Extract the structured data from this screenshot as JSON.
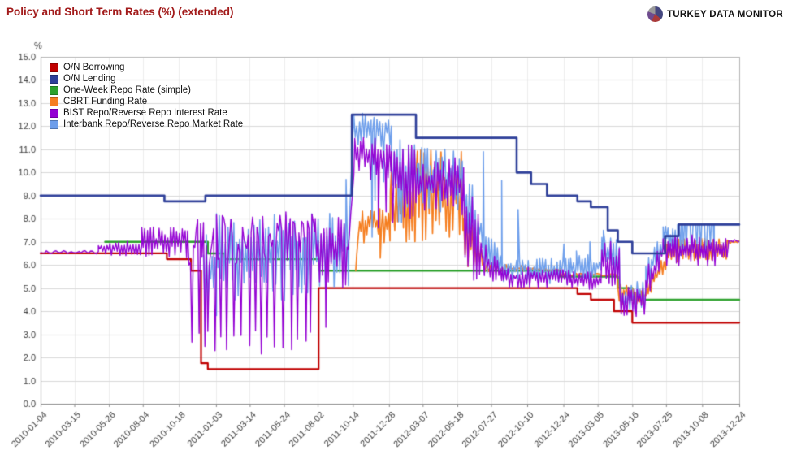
{
  "page": {
    "title": "Policy and Short Term Rates (%) (extended)",
    "title_color": "#A21B1B"
  },
  "logo": {
    "text": "TURKEY DATA MONITOR",
    "pie_colors": [
      "#44477F",
      "#A93A3A",
      "#6E4B8E",
      "#9A9A9A"
    ]
  },
  "chart_data": {
    "type": "line",
    "title": "Policy and Short Term Rates (%) (extended)",
    "unit_label": "%",
    "x_start_date": "2010-01-04",
    "x_end_date": "2013-12-24",
    "x_total_days": 1450,
    "ylim": [
      0,
      15
    ],
    "grid": true,
    "legend_position": "top-left-inside",
    "y_ticks": [
      "0.0",
      "1.0",
      "2.0",
      "3.0",
      "4.0",
      "5.0",
      "6.0",
      "7.0",
      "8.0",
      "9.0",
      "10.0",
      "11.0",
      "12.0",
      "13.0",
      "14.0",
      "15.0"
    ],
    "x_ticks": [
      {
        "d": 0,
        "label": "2010-01-04"
      },
      {
        "d": 70,
        "label": "2010-03-15"
      },
      {
        "d": 142,
        "label": "2010-05-26"
      },
      {
        "d": 212,
        "label": "2010-08-04"
      },
      {
        "d": 287,
        "label": "2010-10-18"
      },
      {
        "d": 364,
        "label": "2011-01-03"
      },
      {
        "d": 434,
        "label": "2011-03-14"
      },
      {
        "d": 505,
        "label": "2011-05-24"
      },
      {
        "d": 575,
        "label": "2011-08-02"
      },
      {
        "d": 648,
        "label": "2011-10-14"
      },
      {
        "d": 723,
        "label": "2011-12-28"
      },
      {
        "d": 793,
        "label": "2012-03-07"
      },
      {
        "d": 865,
        "label": "2012-05-18"
      },
      {
        "d": 935,
        "label": "2012-07-27"
      },
      {
        "d": 1010,
        "label": "2012-10-10"
      },
      {
        "d": 1085,
        "label": "2012-12-24"
      },
      {
        "d": 1156,
        "label": "2013-03-05"
      },
      {
        "d": 1228,
        "label": "2013-05-16"
      },
      {
        "d": 1298,
        "label": "2013-07-25"
      },
      {
        "d": 1373,
        "label": "2013-10-08"
      },
      {
        "d": 1450,
        "label": "2013-12-24"
      }
    ],
    "draw_order": [
      2,
      0,
      3,
      5,
      4,
      1
    ],
    "series": [
      {
        "name": "O/N Borrowing",
        "color": "#C00000",
        "width": 2.2,
        "kind": "step",
        "points": [
          [
            0,
            6.5
          ],
          [
            262,
            6.25
          ],
          [
            312,
            5.75
          ],
          [
            333,
            1.75
          ],
          [
            347,
            1.5
          ],
          [
            577,
            5.0
          ],
          [
            1114,
            4.75
          ],
          [
            1142,
            4.5
          ],
          [
            1190,
            4.0
          ],
          [
            1228,
            3.5
          ],
          [
            1450,
            3.5
          ]
        ]
      },
      {
        "name": "O/N Lending",
        "color": "#2E3F99",
        "width": 2.6,
        "kind": "step",
        "points": [
          [
            0,
            9.0
          ],
          [
            257,
            8.75
          ],
          [
            342,
            9.0
          ],
          [
            646,
            12.5
          ],
          [
            779,
            11.5
          ],
          [
            988,
            10.0
          ],
          [
            1018,
            9.5
          ],
          [
            1051,
            9.0
          ],
          [
            1114,
            8.75
          ],
          [
            1142,
            8.5
          ],
          [
            1177,
            7.5
          ],
          [
            1198,
            7.0
          ],
          [
            1228,
            6.5
          ],
          [
            1296,
            7.25
          ],
          [
            1324,
            7.75
          ],
          [
            1450,
            7.75
          ]
        ]
      },
      {
        "name": "One-Week Repo Rate (simple)",
        "color": "#2CA02C",
        "width": 2.4,
        "kind": "step",
        "points": [
          [
            134,
            7.0
          ],
          [
            347,
            6.5
          ],
          [
            382,
            6.25
          ],
          [
            578,
            5.75
          ],
          [
            1079,
            5.5
          ],
          [
            1198,
            5.0
          ],
          [
            1228,
            4.5
          ],
          [
            1450,
            4.5
          ]
        ]
      },
      {
        "name": "CBRT Funding Rate",
        "color": "#F57E20",
        "width": 1.7,
        "kind": "noisy",
        "segments": [
          {
            "d": [
              654,
              662
            ],
            "mode": "ramp",
            "v0": 5.75,
            "v1": 7.9,
            "j": 0.15,
            "dt": 2
          },
          {
            "d": [
              662,
              726
            ],
            "mode": "noise",
            "lo": 6.9,
            "hi": 8.5,
            "dt": 3
          },
          {
            "d": [
              726,
              782
            ],
            "mode": "noise",
            "lo": 6.9,
            "hi": 9.4,
            "hi2": 10.6,
            "dt": 3
          },
          {
            "d": [
              782,
              878
            ],
            "mode": "noise",
            "lo": 7.0,
            "hi": 11.0,
            "dt": 3.5
          },
          {
            "d": [
              878,
              918
            ],
            "mode": "noise",
            "lo": 5.9,
            "hi": 8.6,
            "hi2": 6.8,
            "dt": 3
          },
          {
            "d": [
              918,
              1080
            ],
            "mode": "noise",
            "lo": 5.7,
            "hi": 6.1,
            "hi2": 5.85,
            "dt": 4
          },
          {
            "d": [
              1080,
              1198
            ],
            "mode": "flat",
            "v": 5.58,
            "j": 0.06,
            "dt": 4
          },
          {
            "d": [
              1198,
              1258
            ],
            "mode": "noise",
            "lo": 4.3,
            "hi": 5.3,
            "hi2": 4.9,
            "dt": 3
          },
          {
            "d": [
              1258,
              1300
            ],
            "mode": "noise",
            "lo": 4.4,
            "lo2": 5.9,
            "hi": 5.3,
            "hi2": 6.6,
            "dt": 3
          },
          {
            "d": [
              1300,
              1425
            ],
            "mode": "noise",
            "lo": 6.1,
            "hi": 7.15,
            "dt": 3
          },
          {
            "d": [
              1425,
              1450
            ],
            "mode": "flat",
            "v": 7.0,
            "j": 0.07,
            "dt": 3
          }
        ],
        "spikes": [
          {
            "d": 705,
            "v": 6.3
          },
          {
            "d": 728,
            "v": 10.0
          }
        ]
      },
      {
        "name": "BIST Repo/Reverse Repo Interest Rate",
        "color": "#9400D3",
        "width": 1.4,
        "kind": "noisy",
        "segments": [
          {
            "d": [
              0,
              120
            ],
            "mode": "flat",
            "v": 6.55,
            "j": 0.07,
            "dt": 4
          },
          {
            "d": [
              120,
              210
            ],
            "mode": "noise",
            "lo": 6.4,
            "hi": 7.05,
            "dt": 3
          },
          {
            "d": [
              210,
              305
            ],
            "mode": "noise",
            "lo": 6.3,
            "hi": 7.65,
            "dt": 3
          },
          {
            "d": [
              305,
              365
            ],
            "mode": "sawdown",
            "hi": 8.0,
            "band": 2.2,
            "lo": 2.2,
            "dipband": 1.2,
            "period": 9,
            "dt": 3
          },
          {
            "d": [
              365,
              570
            ],
            "mode": "sawdown",
            "hi": 8.3,
            "band": 2.3,
            "lo": 1.9,
            "dipband": 1.3,
            "period": 12,
            "dt": 3
          },
          {
            "d": [
              570,
              638
            ],
            "mode": "noise",
            "lo": 4.6,
            "hi": 8.2,
            "dt": 3
          },
          {
            "d": [
              638,
              652
            ],
            "mode": "ramp",
            "v0": 6.5,
            "v1": 10.8,
            "j": 0.4,
            "dt": 3
          },
          {
            "d": [
              652,
              728
            ],
            "mode": "noise",
            "lo": 9.7,
            "hi": 11.6,
            "dt": 3
          },
          {
            "d": [
              728,
              782
            ],
            "mode": "noise",
            "lo": 7.7,
            "hi": 11.2,
            "dt": 3
          },
          {
            "d": [
              782,
              878
            ],
            "mode": "noise",
            "lo": 8.1,
            "hi": 10.65,
            "dt": 3
          },
          {
            "d": [
              878,
              918
            ],
            "mode": "noise",
            "lo": 5.3,
            "hi": 10.4,
            "hi2": 7.5,
            "dt": 3
          },
          {
            "d": [
              918,
              958
            ],
            "mode": "noise",
            "lo": 5.0,
            "hi": 7.2,
            "hi2": 6.2,
            "dt": 3
          },
          {
            "d": [
              958,
              1100
            ],
            "mode": "noise",
            "lo": 4.95,
            "hi": 5.9,
            "dt": 3
          },
          {
            "d": [
              1100,
              1165
            ],
            "mode": "noise",
            "lo": 4.9,
            "hi": 5.75,
            "dt": 3
          },
          {
            "d": [
              1165,
              1202
            ],
            "mode": "noise",
            "lo": 5.1,
            "hi": 7.1,
            "dt": 3
          },
          {
            "d": [
              1202,
              1256
            ],
            "mode": "noise",
            "lo": 3.8,
            "hi": 5.1,
            "dt": 3
          },
          {
            "d": [
              1256,
              1292
            ],
            "mode": "noise",
            "lo": 4.5,
            "lo2": 5.8,
            "hi": 5.8,
            "hi2": 7.2,
            "dt": 3
          },
          {
            "d": [
              1292,
              1428
            ],
            "mode": "noise",
            "lo": 5.95,
            "hi": 7.3,
            "dt": 2.5
          },
          {
            "d": [
              1428,
              1450
            ],
            "mode": "flat",
            "v": 7.05,
            "j": 0.06,
            "dt": 3
          }
        ],
        "spikes": [
          {
            "d": 592,
            "v": 3.3
          },
          {
            "d": 701,
            "v": 7.6
          },
          {
            "d": 717,
            "v": 8.3
          },
          {
            "d": 1236,
            "v": 3.78
          }
        ]
      },
      {
        "name": "Interbank Repo/Reverse Repo Market Rate",
        "color": "#6D9EEB",
        "width": 1.5,
        "kind": "noisy",
        "segments": [
          {
            "d": [
              338,
              365
            ],
            "mode": "noise",
            "lo": 3.8,
            "hi": 7.4,
            "dt": 3
          },
          {
            "d": [
              365,
              570
            ],
            "mode": "noise",
            "lo": 4.4,
            "hi": 8.25,
            "dt": 3
          },
          {
            "d": [
              570,
              640
            ],
            "mode": "noise",
            "lo": 5.0,
            "hi": 8.3,
            "dt": 3
          },
          {
            "d": [
              640,
              650
            ],
            "mode": "ramp",
            "v0": 7.2,
            "v1": 12.4,
            "j": 0.3,
            "dt": 2
          },
          {
            "d": [
              650,
              728
            ],
            "mode": "noise",
            "lo": 11.1,
            "hi": 12.58,
            "dt": 3
          },
          {
            "d": [
              728,
              785
            ],
            "mode": "noise",
            "lo": 7.6,
            "hi": 12.4,
            "hi2": 11.2,
            "dt": 3
          },
          {
            "d": [
              785,
              878
            ],
            "mode": "noise",
            "lo": 8.2,
            "hi": 11.15,
            "dt": 3
          },
          {
            "d": [
              878,
              918
            ],
            "mode": "noise",
            "lo": 6.2,
            "hi": 10.9,
            "hi2": 8.0,
            "dt": 3
          },
          {
            "d": [
              918,
              958
            ],
            "mode": "noise",
            "lo": 5.4,
            "hi": 7.6,
            "hi2": 6.6,
            "dt": 3
          },
          {
            "d": [
              958,
              1100
            ],
            "mode": "noise",
            "lo": 5.15,
            "hi": 6.35,
            "dt": 3
          },
          {
            "d": [
              1100,
              1165
            ],
            "mode": "noise",
            "lo": 5.3,
            "hi": 6.5,
            "dt": 3
          },
          {
            "d": [
              1165,
              1202
            ],
            "mode": "noise",
            "lo": 5.4,
            "hi": 7.4,
            "dt": 3
          },
          {
            "d": [
              1202,
              1256
            ],
            "mode": "noise",
            "lo": 3.95,
            "hi": 5.3,
            "dt": 3
          },
          {
            "d": [
              1256,
              1292
            ],
            "mode": "noise",
            "lo": 4.9,
            "lo2": 6.2,
            "hi": 6.3,
            "hi2": 7.5,
            "dt": 3
          },
          {
            "d": [
              1292,
              1322
            ],
            "mode": "noise",
            "lo": 6.6,
            "hi": 7.75,
            "dt": 2.5
          },
          {
            "d": [
              1322,
              1398
            ],
            "mode": "square",
            "hi": 7.75,
            "lo": 6.35,
            "dipband": 0.5,
            "dt": 2
          },
          {
            "d": [
              1398,
              1450
            ],
            "mode": "flat",
            "v": 7.75,
            "j": 0,
            "dt": 4
          }
        ],
        "spikes": [
          {
            "d": 634,
            "v": 9.7
          },
          {
            "d": 688,
            "v": 7.2
          },
          {
            "d": 694,
            "v": 8.8
          },
          {
            "d": 712,
            "v": 9.6
          },
          {
            "d": 919,
            "v": 10.9
          },
          {
            "d": 957,
            "v": 9.65
          },
          {
            "d": 991,
            "v": 8.4
          },
          {
            "d": 1086,
            "v": 6.9
          },
          {
            "d": 1112,
            "v": 6.6
          },
          {
            "d": 1140,
            "v": 7.0
          },
          {
            "d": 1168,
            "v": 7.5
          }
        ]
      }
    ]
  }
}
